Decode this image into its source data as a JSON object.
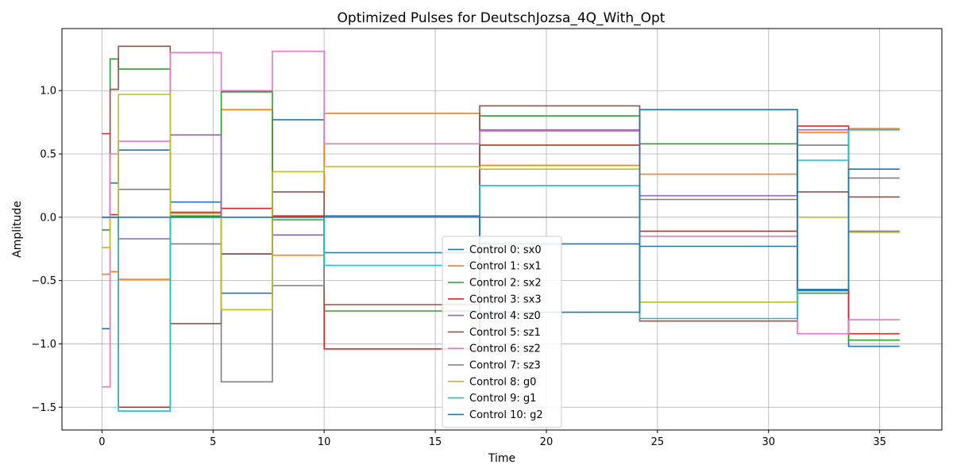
{
  "chart_data": {
    "type": "line",
    "title": "Optimized Pulses for DeutschJozsa_4Q_With_Opt",
    "xlabel": "Time",
    "ylabel": "Amplitude",
    "xlim": [
      -1.8,
      37.8
    ],
    "ylim": [
      -1.68,
      1.49
    ],
    "xticks": [
      0,
      5,
      10,
      15,
      20,
      25,
      30,
      35
    ],
    "yticks": [
      -1.5,
      -1.0,
      -0.5,
      0.0,
      0.5,
      1.0
    ],
    "grid": true,
    "legend_position": "lower center",
    "step_times": [
      0,
      0.37,
      0.74,
      3.07,
      5.37,
      7.67,
      10.0,
      17.0,
      24.2,
      31.3,
      33.6,
      35.9
    ],
    "series": [
      {
        "name": "Control 0: sx0",
        "color": "#1f77b4",
        "values": [
          -0.88,
          0.27,
          0.53,
          0.12,
          -0.6,
          0.77,
          -0.28,
          -0.21,
          -0.23,
          -0.58,
          -1.02
        ]
      },
      {
        "name": "Control 1: sx1",
        "color": "#ff7f0e",
        "values": [
          -0.45,
          -0.43,
          -0.49,
          0.03,
          0.85,
          -0.3,
          0.82,
          0.41,
          0.34,
          0.67,
          0.7
        ]
      },
      {
        "name": "Control 2: sx2",
        "color": "#2ca02c",
        "values": [
          -0.1,
          1.25,
          1.17,
          0.01,
          0.99,
          -0.02,
          -0.74,
          0.8,
          0.58,
          -0.6,
          -0.97
        ]
      },
      {
        "name": "Control 3: sx3",
        "color": "#d62728",
        "values": [
          0.66,
          0.02,
          -1.5,
          0.04,
          0.07,
          0.01,
          -1.04,
          0.57,
          -0.11,
          0.72,
          -0.92
        ]
      },
      {
        "name": "Control 4: sz0",
        "color": "#9467bd",
        "values": [
          0.0,
          0.0,
          -0.17,
          0.65,
          -0.29,
          -0.14,
          0.0,
          0.69,
          0.17,
          0.69,
          -0.11
        ]
      },
      {
        "name": "Control 5: sz1",
        "color": "#8c564b",
        "values": [
          0.0,
          1.01,
          1.35,
          -0.84,
          -0.29,
          0.2,
          -0.69,
          0.88,
          -0.82,
          0.2,
          0.16
        ]
      },
      {
        "name": "Control 6: sz2",
        "color": "#e377c2",
        "values": [
          -1.34,
          0.5,
          0.6,
          1.3,
          1.0,
          1.31,
          0.58,
          0.68,
          -0.15,
          -0.92,
          -0.81
        ]
      },
      {
        "name": "Control 7: sz3",
        "color": "#7f7f7f",
        "values": [
          0.0,
          0.0,
          0.22,
          -0.21,
          -1.3,
          -0.54,
          0.0,
          0.0,
          0.14,
          0.57,
          0.31
        ]
      },
      {
        "name": "Control 8: g0",
        "color": "#bcbd22",
        "values": [
          -0.24,
          0.0,
          0.97,
          0.0,
          -0.73,
          0.36,
          0.4,
          0.38,
          -0.67,
          0.0,
          -0.12
        ]
      },
      {
        "name": "Control 9: g1",
        "color": "#17becf",
        "values": [
          0.0,
          0.0,
          -1.53,
          0.0,
          0.0,
          0.0,
          -0.38,
          0.25,
          -0.8,
          0.45,
          0.69
        ]
      },
      {
        "name": "Control 10: g2",
        "color": "#1f77b4",
        "values": [
          0.0,
          0.0,
          0.0,
          0.0,
          0.0,
          0.0,
          0.01,
          -0.75,
          0.85,
          -0.57,
          0.38
        ]
      }
    ]
  }
}
